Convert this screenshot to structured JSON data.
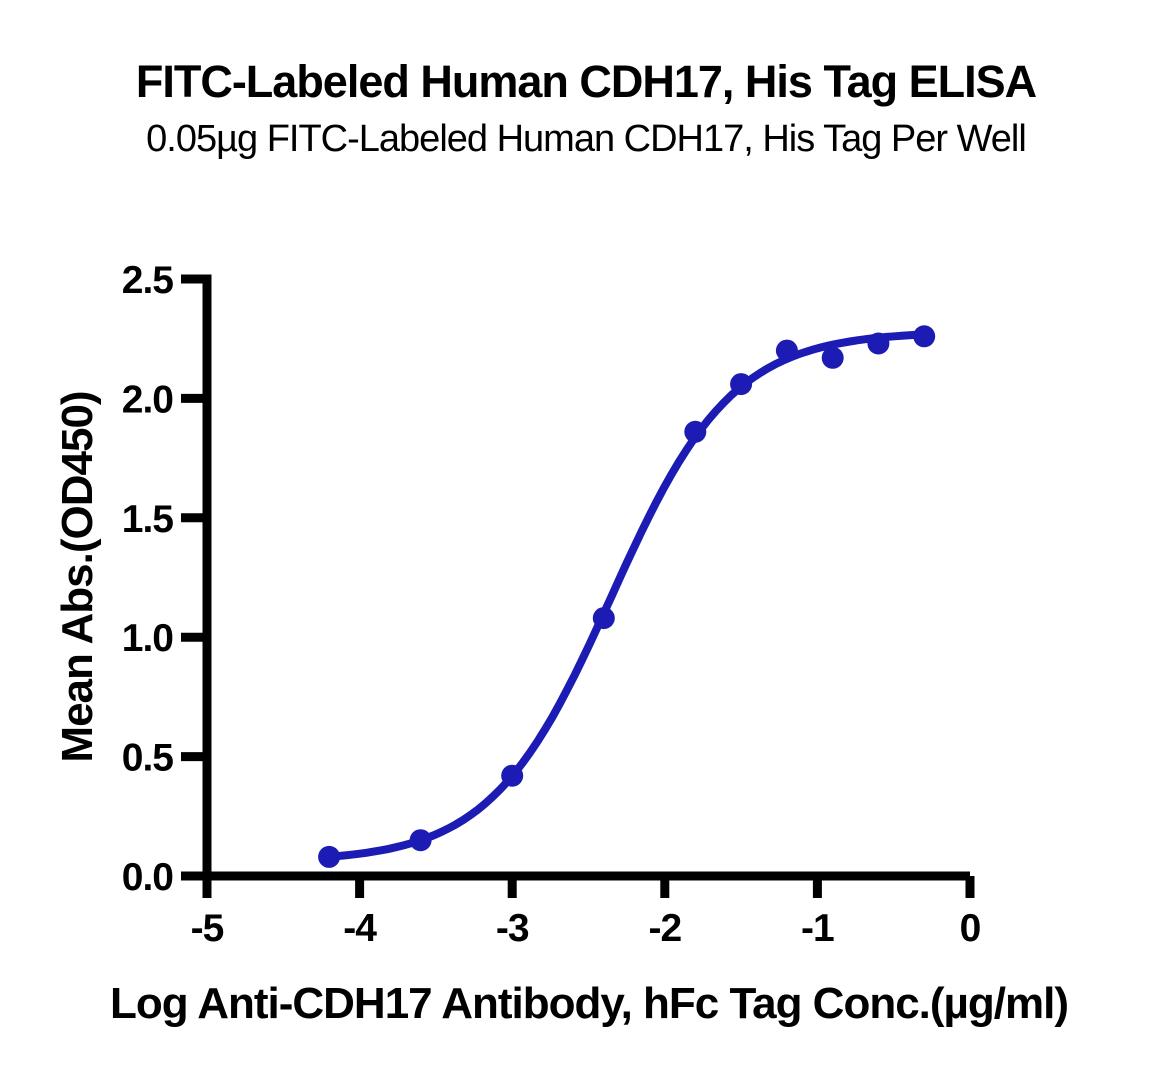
{
  "page": {
    "background_color": "#FFFFFF",
    "text_color": "#000000"
  },
  "chart_data": {
    "type": "scatter",
    "title": "FITC-Labeled Human CDH17, His Tag ELISA",
    "subtitle": "0.05µg FITC-Labeled Human CDH17, His Tag Per Well",
    "xlabel": "Log Anti-CDH17 Antibody, hFc Tag Conc.(µg/ml)",
    "ylabel": "Mean Abs.(OD450)",
    "xlim": [
      -5,
      0
    ],
    "ylim": [
      0,
      2.5
    ],
    "grid": false,
    "legend_position": "none",
    "xtick_values": [
      -5,
      -4,
      -3,
      -2,
      -1,
      0
    ],
    "xtick_labels": [
      "-5",
      "-4",
      "-3",
      "-2",
      "-1",
      "0"
    ],
    "ytick_values": [
      0,
      0.5,
      1.0,
      1.5,
      2.0,
      2.5
    ],
    "ytick_labels": [
      "0.0",
      "0.5",
      "1.0",
      "1.5",
      "2.0",
      "2.5"
    ],
    "accent_color": "#1C1CB4",
    "axis_color": "#000000",
    "series": [
      {
        "name": "FITC-Labeled Human CDH17, His Tag",
        "marker": "circle",
        "color": "#1C1CB4",
        "x": [
          -4.2,
          -3.6,
          -3.0,
          -2.4,
          -1.8,
          -1.5,
          -1.2,
          -0.9,
          -0.6,
          -0.3
        ],
        "y": [
          0.08,
          0.15,
          0.42,
          1.08,
          1.86,
          2.06,
          2.2,
          2.17,
          2.23,
          2.26
        ]
      }
    ],
    "fit_curve": {
      "model": "4PL sigmoidal",
      "bottom": 0.06,
      "top": 2.28,
      "logEC50": -2.35,
      "hillslope": 1.1,
      "x_start": -4.2,
      "x_end": -0.3,
      "color": "#1C1CB4"
    }
  }
}
